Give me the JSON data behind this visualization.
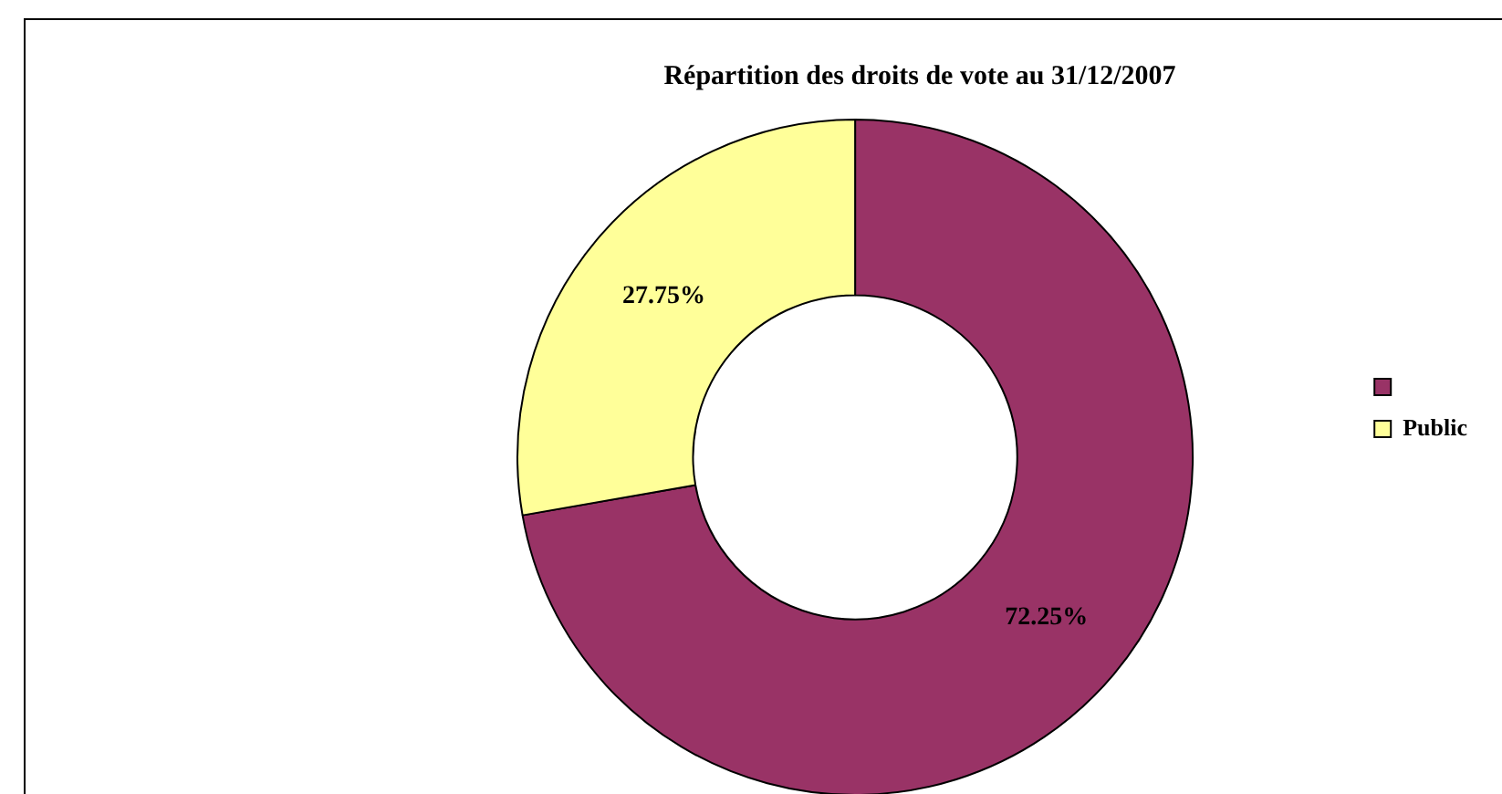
{
  "chart_data": {
    "type": "donut",
    "title": "Répartition des droits de vote au 31/12/2007",
    "categories": [
      null,
      "Public"
    ],
    "values": [
      72.25,
      27.75
    ],
    "colors": [
      "#993366",
      "#ffff99"
    ],
    "value_labels": [
      "72.25%",
      "27.75%"
    ],
    "legend": "right"
  }
}
